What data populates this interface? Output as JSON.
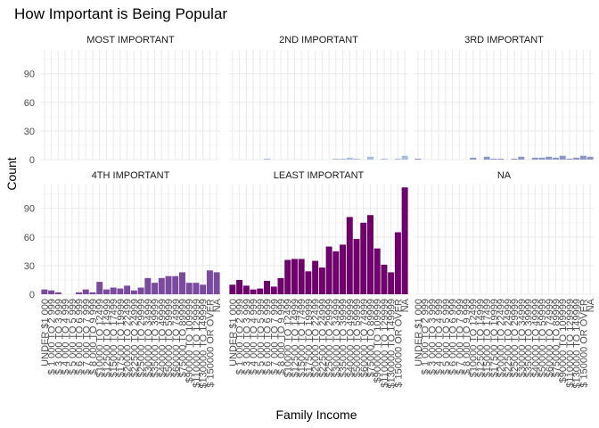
{
  "chart_data": {
    "type": "bar",
    "title": "How Important is Being Popular",
    "xlabel": "Family Income",
    "ylabel": "Count",
    "ylim": [
      0,
      115
    ],
    "yticks": [
      0,
      30,
      60,
      90
    ],
    "grid": true,
    "facet_layout": "3 columns x 2 rows",
    "categories": [
      "UNDER $1 000",
      "$ 1 000 TO 2 999",
      "$ 3 000 TO 3 999",
      "$ 4 000 TO 4 999",
      "$ 5 000 TO 5 999",
      "$ 6 000 TO 6 999",
      "$ 7 000 TO 7 999",
      "$ 8 000 TO 9 999",
      "$10000 TO 12499",
      "$12500 TO 14999",
      "$15000 TO 17499",
      "$17500 TO 19999",
      "$20000 TO 22499",
      "$22500 TO 24999",
      "$25000 TO 29999",
      "$30000 TO 34999",
      "$35000 TO 39999",
      "$40000 TO 49999",
      "$50000 TO 59999",
      "$60000 TO 74999",
      "$75000 TO 89999",
      "$90000 TO 109999",
      "$110000 TO 129999",
      "$130000 TO 149999",
      "$ 150000 OR OVER",
      "NA"
    ],
    "series": [
      {
        "name": "MOST IMPORTANT",
        "color": "#e4ecf6",
        "values": [
          0,
          0,
          0,
          0,
          0,
          0,
          0,
          0,
          0,
          0,
          0,
          0,
          0,
          0,
          0,
          0,
          0,
          0,
          0,
          0,
          0,
          0,
          0,
          0,
          0,
          0
        ]
      },
      {
        "name": "2ND IMPORTANT",
        "color": "#a6bddb",
        "values": [
          0,
          0,
          0,
          0,
          0,
          1,
          0,
          0,
          0,
          0,
          0,
          0,
          0,
          0,
          0,
          1,
          1,
          2,
          1,
          0,
          3,
          0,
          1,
          0,
          1,
          4
        ]
      },
      {
        "name": "3RD IMPORTANT",
        "color": "#8c96c6",
        "values": [
          1,
          0,
          0,
          0,
          0,
          0,
          0,
          0,
          2,
          0,
          3,
          1,
          1,
          0,
          1,
          3,
          0,
          2,
          2,
          3,
          2,
          4,
          1,
          2,
          4,
          3
        ]
      },
      {
        "name": "4TH IMPORTANT",
        "color": "#7a4a9e",
        "values": [
          5,
          4,
          2,
          0,
          0,
          2,
          5,
          2,
          13,
          5,
          7,
          6,
          9,
          4,
          7,
          17,
          12,
          17,
          19,
          19,
          23,
          12,
          12,
          10,
          25,
          23
        ]
      },
      {
        "name": "LEAST IMPORTANT",
        "color": "#6e016b",
        "values": [
          10,
          15,
          9,
          5,
          6,
          14,
          8,
          17,
          36,
          37,
          37,
          24,
          35,
          28,
          50,
          45,
          52,
          81,
          58,
          75,
          83,
          48,
          31,
          23,
          65,
          112
        ]
      },
      {
        "name": "NA",
        "color": "#6e016b",
        "values": [
          0,
          0,
          0,
          0,
          0,
          0,
          0,
          0,
          0,
          0,
          0,
          0,
          0,
          0,
          0,
          0,
          0,
          0,
          0,
          0,
          0,
          0,
          0,
          0,
          0,
          0
        ]
      }
    ]
  }
}
